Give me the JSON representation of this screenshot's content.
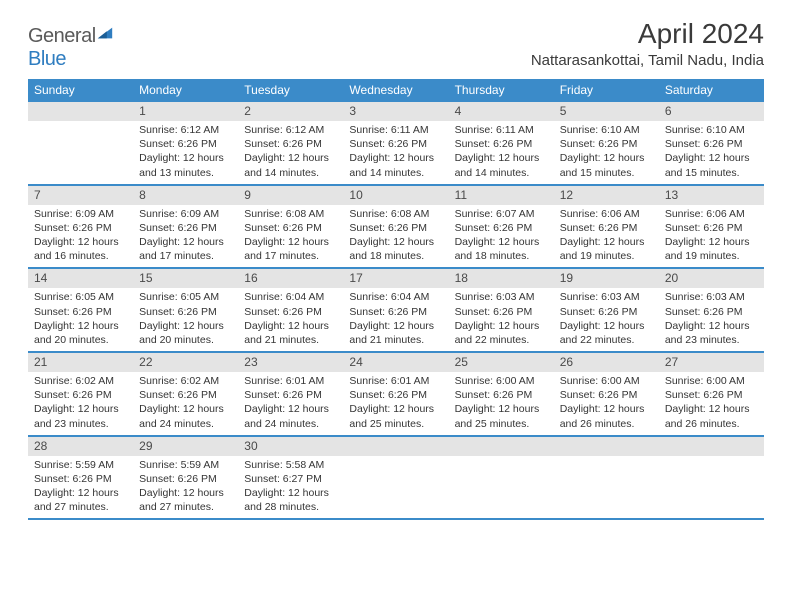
{
  "brand": {
    "part1": "General",
    "part2": "Blue"
  },
  "title": "April 2024",
  "location": "Nattarasankottai, Tamil Nadu, India",
  "colors": {
    "header_bg": "#3b8bc9",
    "header_text": "#ffffff",
    "daynum_bg": "#e4e4e4",
    "daynum_text": "#4a4a4a",
    "body_text": "#353535",
    "rule": "#3b8bc9",
    "logo_gray": "#5a5a5a",
    "logo_blue": "#2f7dc0"
  },
  "dows": [
    "Sunday",
    "Monday",
    "Tuesday",
    "Wednesday",
    "Thursday",
    "Friday",
    "Saturday"
  ],
  "weeks": [
    [
      {
        "n": "",
        "sr": "",
        "ss": "",
        "dl": ""
      },
      {
        "n": "1",
        "sr": "Sunrise: 6:12 AM",
        "ss": "Sunset: 6:26 PM",
        "dl": "Daylight: 12 hours and 13 minutes."
      },
      {
        "n": "2",
        "sr": "Sunrise: 6:12 AM",
        "ss": "Sunset: 6:26 PM",
        "dl": "Daylight: 12 hours and 14 minutes."
      },
      {
        "n": "3",
        "sr": "Sunrise: 6:11 AM",
        "ss": "Sunset: 6:26 PM",
        "dl": "Daylight: 12 hours and 14 minutes."
      },
      {
        "n": "4",
        "sr": "Sunrise: 6:11 AM",
        "ss": "Sunset: 6:26 PM",
        "dl": "Daylight: 12 hours and 14 minutes."
      },
      {
        "n": "5",
        "sr": "Sunrise: 6:10 AM",
        "ss": "Sunset: 6:26 PM",
        "dl": "Daylight: 12 hours and 15 minutes."
      },
      {
        "n": "6",
        "sr": "Sunrise: 6:10 AM",
        "ss": "Sunset: 6:26 PM",
        "dl": "Daylight: 12 hours and 15 minutes."
      }
    ],
    [
      {
        "n": "7",
        "sr": "Sunrise: 6:09 AM",
        "ss": "Sunset: 6:26 PM",
        "dl": "Daylight: 12 hours and 16 minutes."
      },
      {
        "n": "8",
        "sr": "Sunrise: 6:09 AM",
        "ss": "Sunset: 6:26 PM",
        "dl": "Daylight: 12 hours and 17 minutes."
      },
      {
        "n": "9",
        "sr": "Sunrise: 6:08 AM",
        "ss": "Sunset: 6:26 PM",
        "dl": "Daylight: 12 hours and 17 minutes."
      },
      {
        "n": "10",
        "sr": "Sunrise: 6:08 AM",
        "ss": "Sunset: 6:26 PM",
        "dl": "Daylight: 12 hours and 18 minutes."
      },
      {
        "n": "11",
        "sr": "Sunrise: 6:07 AM",
        "ss": "Sunset: 6:26 PM",
        "dl": "Daylight: 12 hours and 18 minutes."
      },
      {
        "n": "12",
        "sr": "Sunrise: 6:06 AM",
        "ss": "Sunset: 6:26 PM",
        "dl": "Daylight: 12 hours and 19 minutes."
      },
      {
        "n": "13",
        "sr": "Sunrise: 6:06 AM",
        "ss": "Sunset: 6:26 PM",
        "dl": "Daylight: 12 hours and 19 minutes."
      }
    ],
    [
      {
        "n": "14",
        "sr": "Sunrise: 6:05 AM",
        "ss": "Sunset: 6:26 PM",
        "dl": "Daylight: 12 hours and 20 minutes."
      },
      {
        "n": "15",
        "sr": "Sunrise: 6:05 AM",
        "ss": "Sunset: 6:26 PM",
        "dl": "Daylight: 12 hours and 20 minutes."
      },
      {
        "n": "16",
        "sr": "Sunrise: 6:04 AM",
        "ss": "Sunset: 6:26 PM",
        "dl": "Daylight: 12 hours and 21 minutes."
      },
      {
        "n": "17",
        "sr": "Sunrise: 6:04 AM",
        "ss": "Sunset: 6:26 PM",
        "dl": "Daylight: 12 hours and 21 minutes."
      },
      {
        "n": "18",
        "sr": "Sunrise: 6:03 AM",
        "ss": "Sunset: 6:26 PM",
        "dl": "Daylight: 12 hours and 22 minutes."
      },
      {
        "n": "19",
        "sr": "Sunrise: 6:03 AM",
        "ss": "Sunset: 6:26 PM",
        "dl": "Daylight: 12 hours and 22 minutes."
      },
      {
        "n": "20",
        "sr": "Sunrise: 6:03 AM",
        "ss": "Sunset: 6:26 PM",
        "dl": "Daylight: 12 hours and 23 minutes."
      }
    ],
    [
      {
        "n": "21",
        "sr": "Sunrise: 6:02 AM",
        "ss": "Sunset: 6:26 PM",
        "dl": "Daylight: 12 hours and 23 minutes."
      },
      {
        "n": "22",
        "sr": "Sunrise: 6:02 AM",
        "ss": "Sunset: 6:26 PM",
        "dl": "Daylight: 12 hours and 24 minutes."
      },
      {
        "n": "23",
        "sr": "Sunrise: 6:01 AM",
        "ss": "Sunset: 6:26 PM",
        "dl": "Daylight: 12 hours and 24 minutes."
      },
      {
        "n": "24",
        "sr": "Sunrise: 6:01 AM",
        "ss": "Sunset: 6:26 PM",
        "dl": "Daylight: 12 hours and 25 minutes."
      },
      {
        "n": "25",
        "sr": "Sunrise: 6:00 AM",
        "ss": "Sunset: 6:26 PM",
        "dl": "Daylight: 12 hours and 25 minutes."
      },
      {
        "n": "26",
        "sr": "Sunrise: 6:00 AM",
        "ss": "Sunset: 6:26 PM",
        "dl": "Daylight: 12 hours and 26 minutes."
      },
      {
        "n": "27",
        "sr": "Sunrise: 6:00 AM",
        "ss": "Sunset: 6:26 PM",
        "dl": "Daylight: 12 hours and 26 minutes."
      }
    ],
    [
      {
        "n": "28",
        "sr": "Sunrise: 5:59 AM",
        "ss": "Sunset: 6:26 PM",
        "dl": "Daylight: 12 hours and 27 minutes."
      },
      {
        "n": "29",
        "sr": "Sunrise: 5:59 AM",
        "ss": "Sunset: 6:26 PM",
        "dl": "Daylight: 12 hours and 27 minutes."
      },
      {
        "n": "30",
        "sr": "Sunrise: 5:58 AM",
        "ss": "Sunset: 6:27 PM",
        "dl": "Daylight: 12 hours and 28 minutes."
      },
      {
        "n": "",
        "sr": "",
        "ss": "",
        "dl": ""
      },
      {
        "n": "",
        "sr": "",
        "ss": "",
        "dl": ""
      },
      {
        "n": "",
        "sr": "",
        "ss": "",
        "dl": ""
      },
      {
        "n": "",
        "sr": "",
        "ss": "",
        "dl": ""
      }
    ]
  ]
}
